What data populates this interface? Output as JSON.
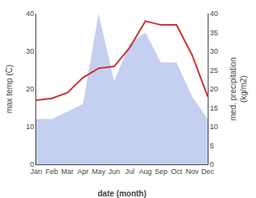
{
  "chart_data": {
    "type": "line",
    "categories": [
      "Jan",
      "Feb",
      "Mar",
      "Apr",
      "May",
      "Jun",
      "Jul",
      "Aug",
      "Sep",
      "Oct",
      "Nov",
      "Dec"
    ],
    "xlabel": "date (month)",
    "ylabel": "max temp (C)",
    "y2label": "med. precipitation\n(kg/m2)",
    "ylim": [
      0,
      40
    ],
    "yticks": [
      0,
      10,
      20,
      30,
      40
    ],
    "y2lim": [
      0,
      40
    ],
    "y2ticks": [
      0,
      5,
      10,
      15,
      20,
      25,
      30,
      35,
      40
    ],
    "grid": false,
    "series": [
      {
        "type": "area",
        "color": "#c5d0f0",
        "axis": "y2",
        "values": [
          12,
          12,
          14,
          16,
          40,
          22,
          32,
          35,
          27,
          27,
          18,
          12
        ]
      },
      {
        "type": "line",
        "color": "#cc3333",
        "values": [
          17,
          17.5,
          19,
          23,
          25.5,
          26,
          31,
          38,
          37,
          37,
          29,
          18
        ]
      }
    ]
  }
}
